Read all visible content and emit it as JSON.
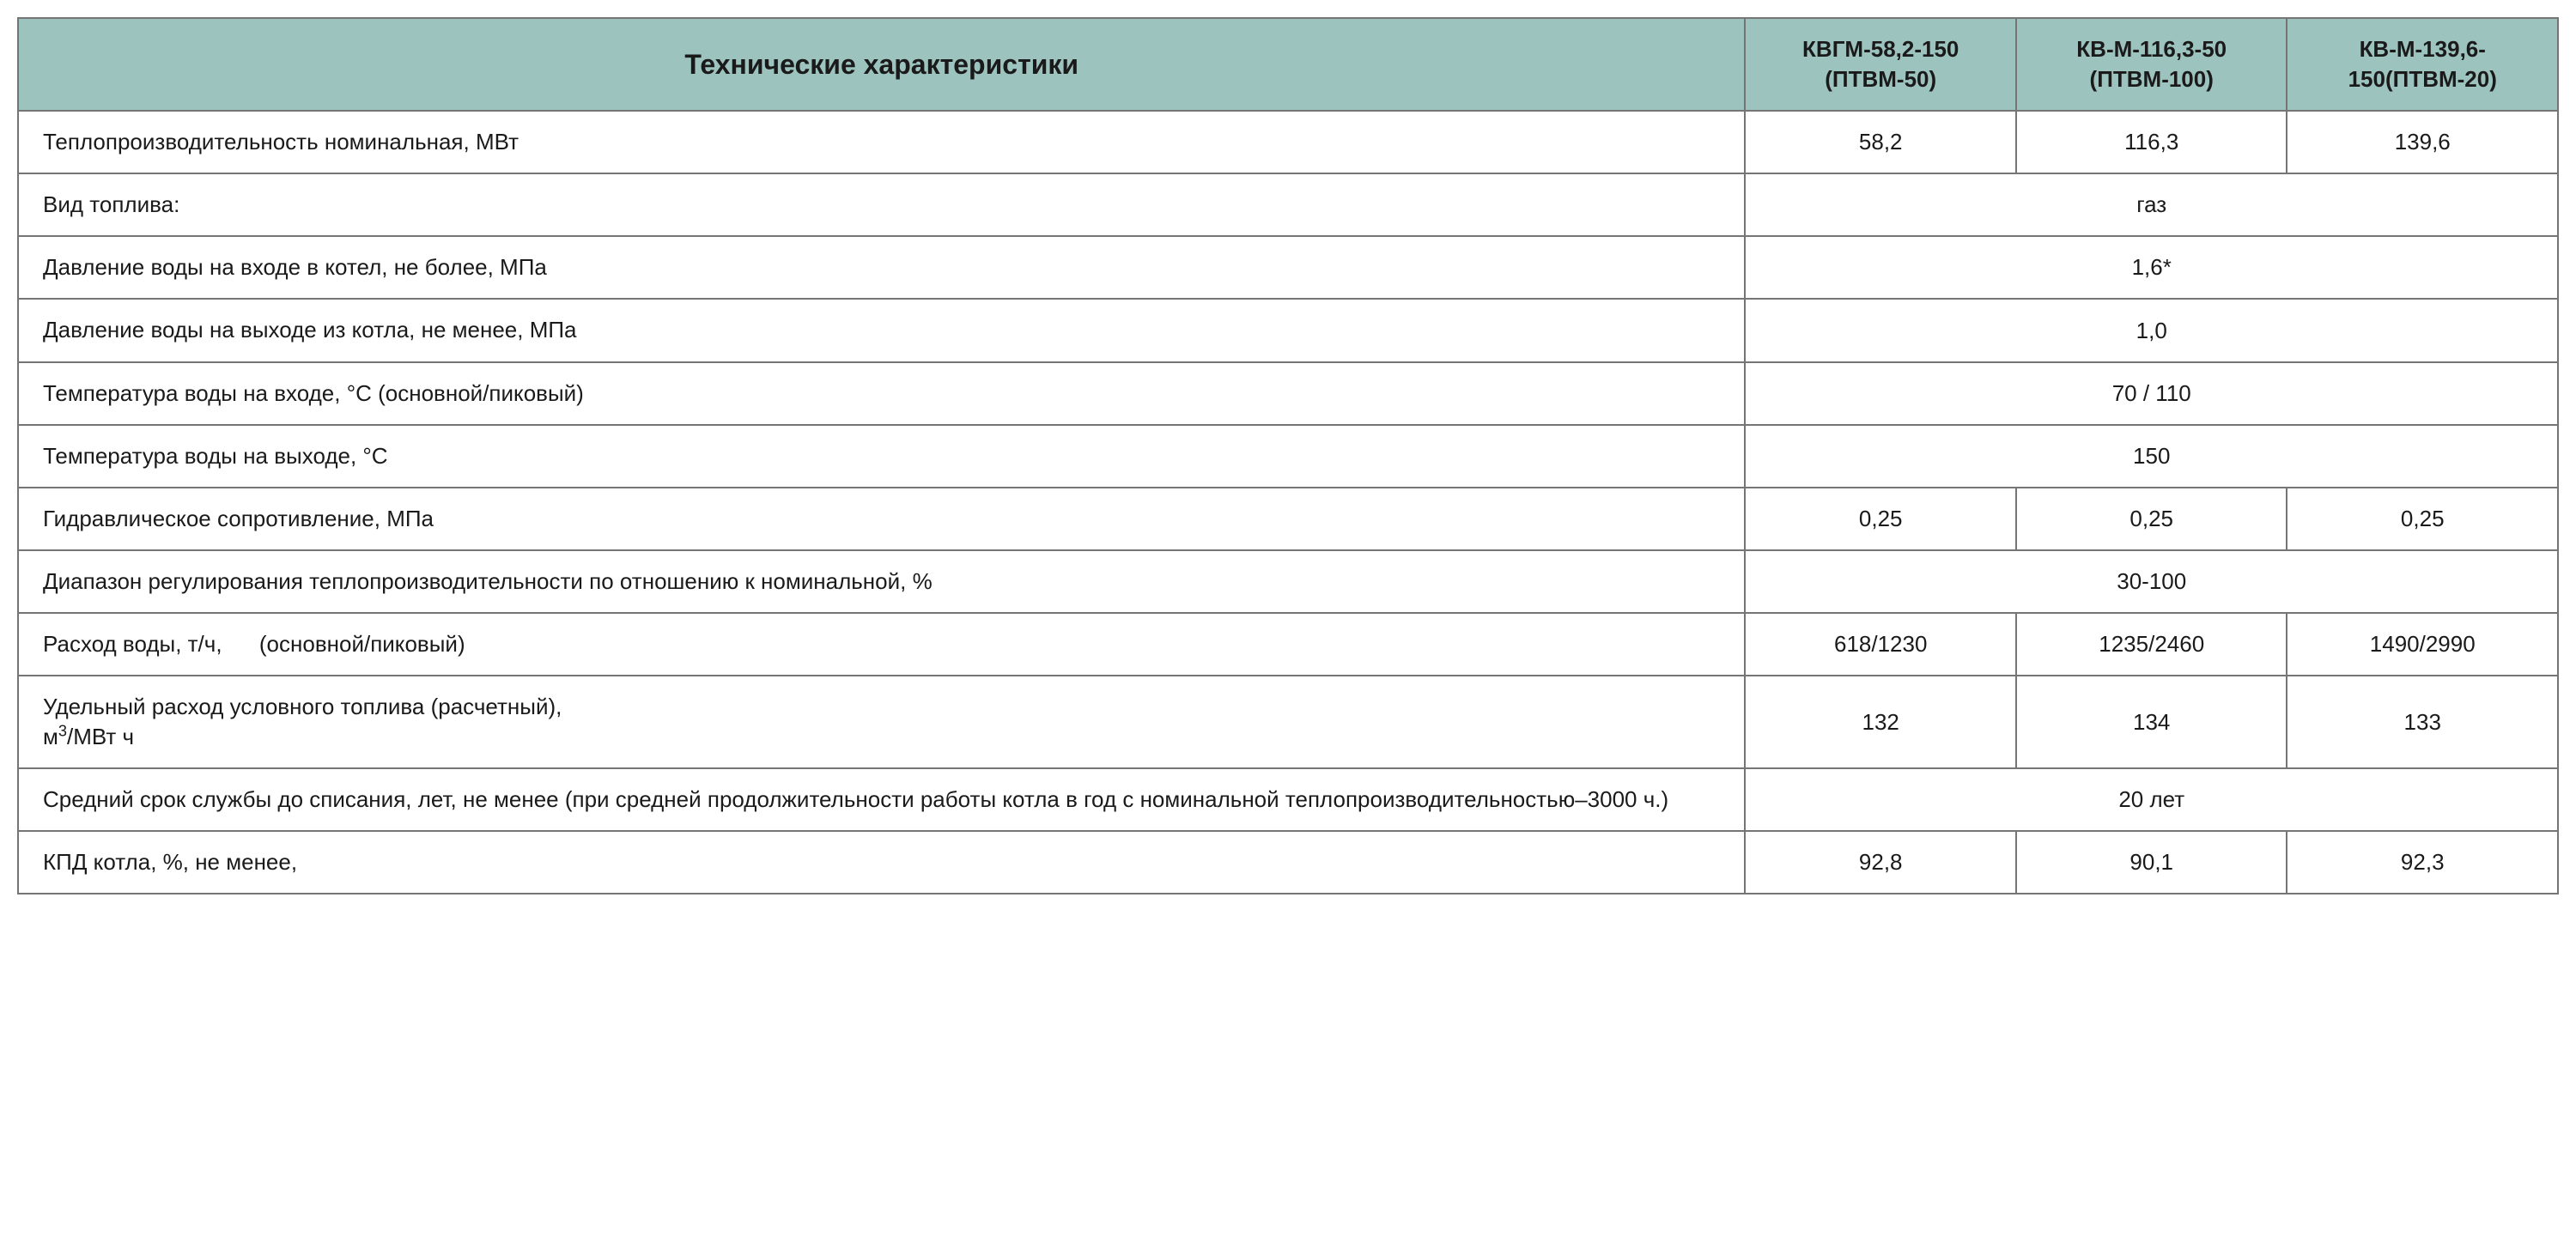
{
  "table": {
    "header_color": "#9dc3bf",
    "border_color": "#757575",
    "text_color": "#1a1a1a",
    "font_family": "Verdana, Geneva, Tahoma, sans-serif",
    "main_header_fontsize": 32,
    "model_header_fontsize": 26,
    "cell_fontsize": 26,
    "col_widths_pct": [
      68,
      10.67,
      10.67,
      10.67
    ],
    "headers": {
      "main": "Технические характеристики",
      "model1_line1": "КВГМ-58,2-150",
      "model1_line2": "(ПТВМ-50)",
      "model2_line1": "КВ-М-116,3-50",
      "model2_line2": "(ПТВМ-100)",
      "model3_line1": "КВ-М-139,6-",
      "model3_line2": "150(ПТВМ-20)"
    },
    "rows": [
      {
        "label": "Теплопроизводительность номинальная, МВт",
        "span": false,
        "v1": "58,2",
        "v2": "116,3",
        "v3": "139,6"
      },
      {
        "label": "Вид топлива:",
        "span": true,
        "v": "газ"
      },
      {
        "label": "Давление воды на входе в котел, не более, МПа",
        "span": true,
        "v": "1,6*"
      },
      {
        "label": "Давление воды на выходе из котла, не менее, МПа",
        "span": true,
        "v": "1,0"
      },
      {
        "label": "Температура воды на входе, °С (основной/пиковый)",
        "span": true,
        "v": "70 / 110"
      },
      {
        "label": "Температура воды на выходе, °С",
        "span": true,
        "v": "150"
      },
      {
        "label": "Гидравлическое сопротивление, МПа",
        "span": false,
        "v1": "0,25",
        "v2": "0,25",
        "v3": "0,25"
      },
      {
        "label": "Диапазон регулирования теплопроизводительности по отношению к номинальной, %",
        "span": true,
        "v": "30-100"
      },
      {
        "label": "Расход воды,  т/ч,      (основной/пиковый)",
        "span": false,
        "v1": "618/1230",
        "v2": "1235/2460",
        "v3": "1490/2990"
      },
      {
        "label_html": "Удельный расход условного топлива (расчетный),<br>м<span class=\"sup\">3</span>/МВт ч",
        "span": false,
        "v1": "132",
        "v2": "134",
        "v3": "133"
      },
      {
        "label": "Средний срок службы до списания, лет, не менее (при средней продолжительности работы котла в год с номинальной теплопроизводительностью–3000 ч.)",
        "span": true,
        "v": "20 лет"
      },
      {
        "label": "КПД котла, %, не менее,",
        "span": false,
        "v1": "92,8",
        "v2": "90,1",
        "v3": "92,3"
      }
    ]
  }
}
